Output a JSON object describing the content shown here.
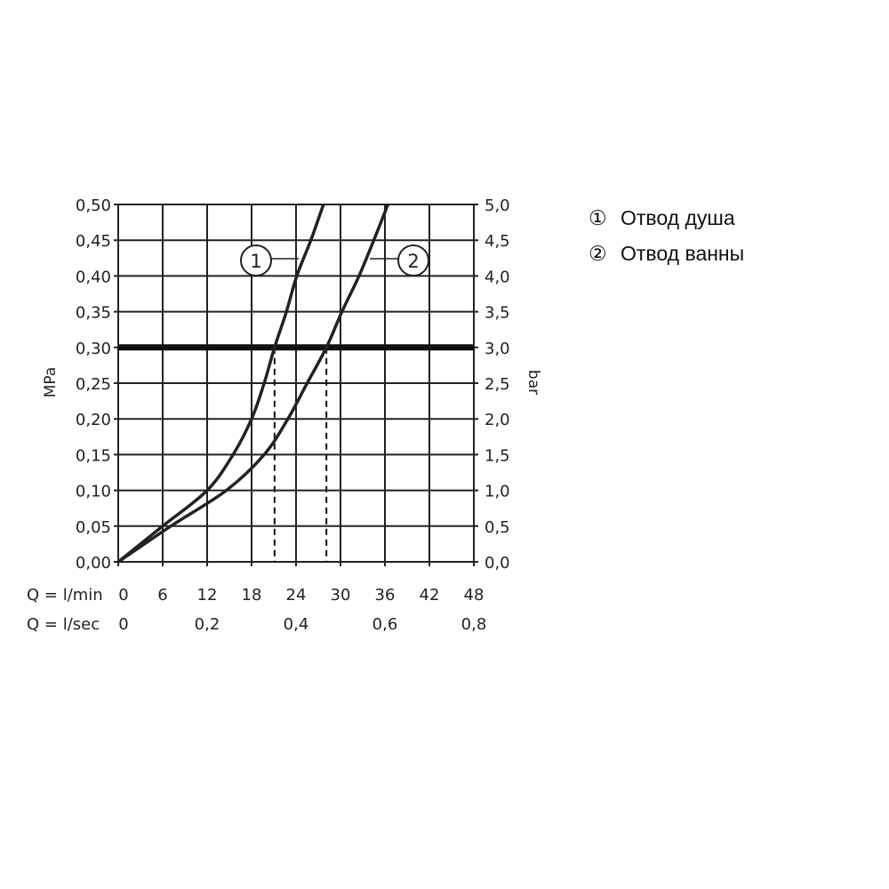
{
  "chart_data": {
    "type": "line",
    "xlabel_primary": "Q = l/min",
    "xlabel_secondary": "Q = l/sec",
    "ylabel_left": "MPa",
    "ylabel_right": "bar",
    "xlim": [
      0,
      48
    ],
    "ylim": [
      0,
      0.5
    ],
    "grid": true,
    "x_ticks": [
      "0",
      "6",
      "12",
      "18",
      "24",
      "30",
      "36",
      "42",
      "48"
    ],
    "x_ticks_values": [
      0,
      6,
      12,
      18,
      24,
      30,
      36,
      42,
      48
    ],
    "x2_ticks": [
      "0",
      "0,2",
      "0,4",
      "0,6",
      "0,8"
    ],
    "x2_ticks_values": [
      0,
      12,
      24,
      36,
      48
    ],
    "y_ticks_left": [
      "0,00",
      "0,05",
      "0,10",
      "0,15",
      "0,20",
      "0,25",
      "0,30",
      "0,35",
      "0,40",
      "0,45",
      "0,50"
    ],
    "y_ticks_right": [
      "0,0",
      "0,5",
      "1,0",
      "1,5",
      "2,0",
      "2,5",
      "3,0",
      "3,5",
      "4,0",
      "4,5",
      "5,0"
    ],
    "y_ticks_values": [
      0,
      0.05,
      0.1,
      0.15,
      0.2,
      0.25,
      0.3,
      0.35,
      0.4,
      0.45,
      0.5
    ],
    "reference_line": {
      "y": 0.3
    },
    "dashed_markers": [
      21.1,
      28.1
    ],
    "series": [
      {
        "name": "1",
        "x": [
          0,
          6,
          12,
          15.5,
          18,
          19.7,
          21.1,
          22.7,
          24.1,
          26,
          27.7
        ],
        "y": [
          0,
          0.05,
          0.1,
          0.15,
          0.2,
          0.25,
          0.3,
          0.35,
          0.4,
          0.45,
          0.5
        ]
      },
      {
        "name": "2",
        "x": [
          0,
          7.1,
          14.6,
          19.7,
          22.9,
          25.5,
          28.1,
          30.2,
          32.5,
          34.5,
          36.4
        ],
        "y": [
          0,
          0.05,
          0.1,
          0.15,
          0.2,
          0.25,
          0.3,
          0.35,
          0.4,
          0.45,
          0.5
        ]
      }
    ],
    "color": "#222222"
  },
  "legend": [
    {
      "marker": "①",
      "label": "Отвод душа"
    },
    {
      "marker": "②",
      "label": "Отвод ванны"
    }
  ]
}
